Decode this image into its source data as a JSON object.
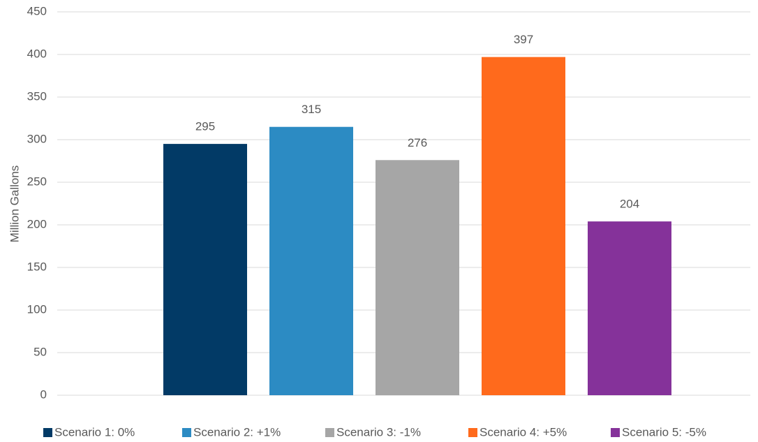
{
  "chart_data": {
    "type": "bar",
    "y_label": "Million Gallons",
    "categories": [
      null
    ],
    "series": [
      {
        "name": "Scenario 1: 0%",
        "color": "#023a66",
        "values": [
          295
        ]
      },
      {
        "name": "Scenario 2: +1%",
        "color": "#2c8bc3",
        "values": [
          315
        ]
      },
      {
        "name": "Scenario 3: -1%",
        "color": "#a6a6a6",
        "values": [
          276
        ]
      },
      {
        "name": "Scenario 4: +5%",
        "color": "#ff6a1c",
        "values": [
          397
        ]
      },
      {
        "name": "Scenario 5: -5%",
        "color": "#85329a",
        "values": [
          204
        ]
      }
    ],
    "ylim": [
      0,
      450
    ],
    "yticks": [
      0,
      50,
      100,
      150,
      200,
      250,
      300,
      350,
      400,
      450
    ],
    "grid": true,
    "legend": "bottom"
  }
}
